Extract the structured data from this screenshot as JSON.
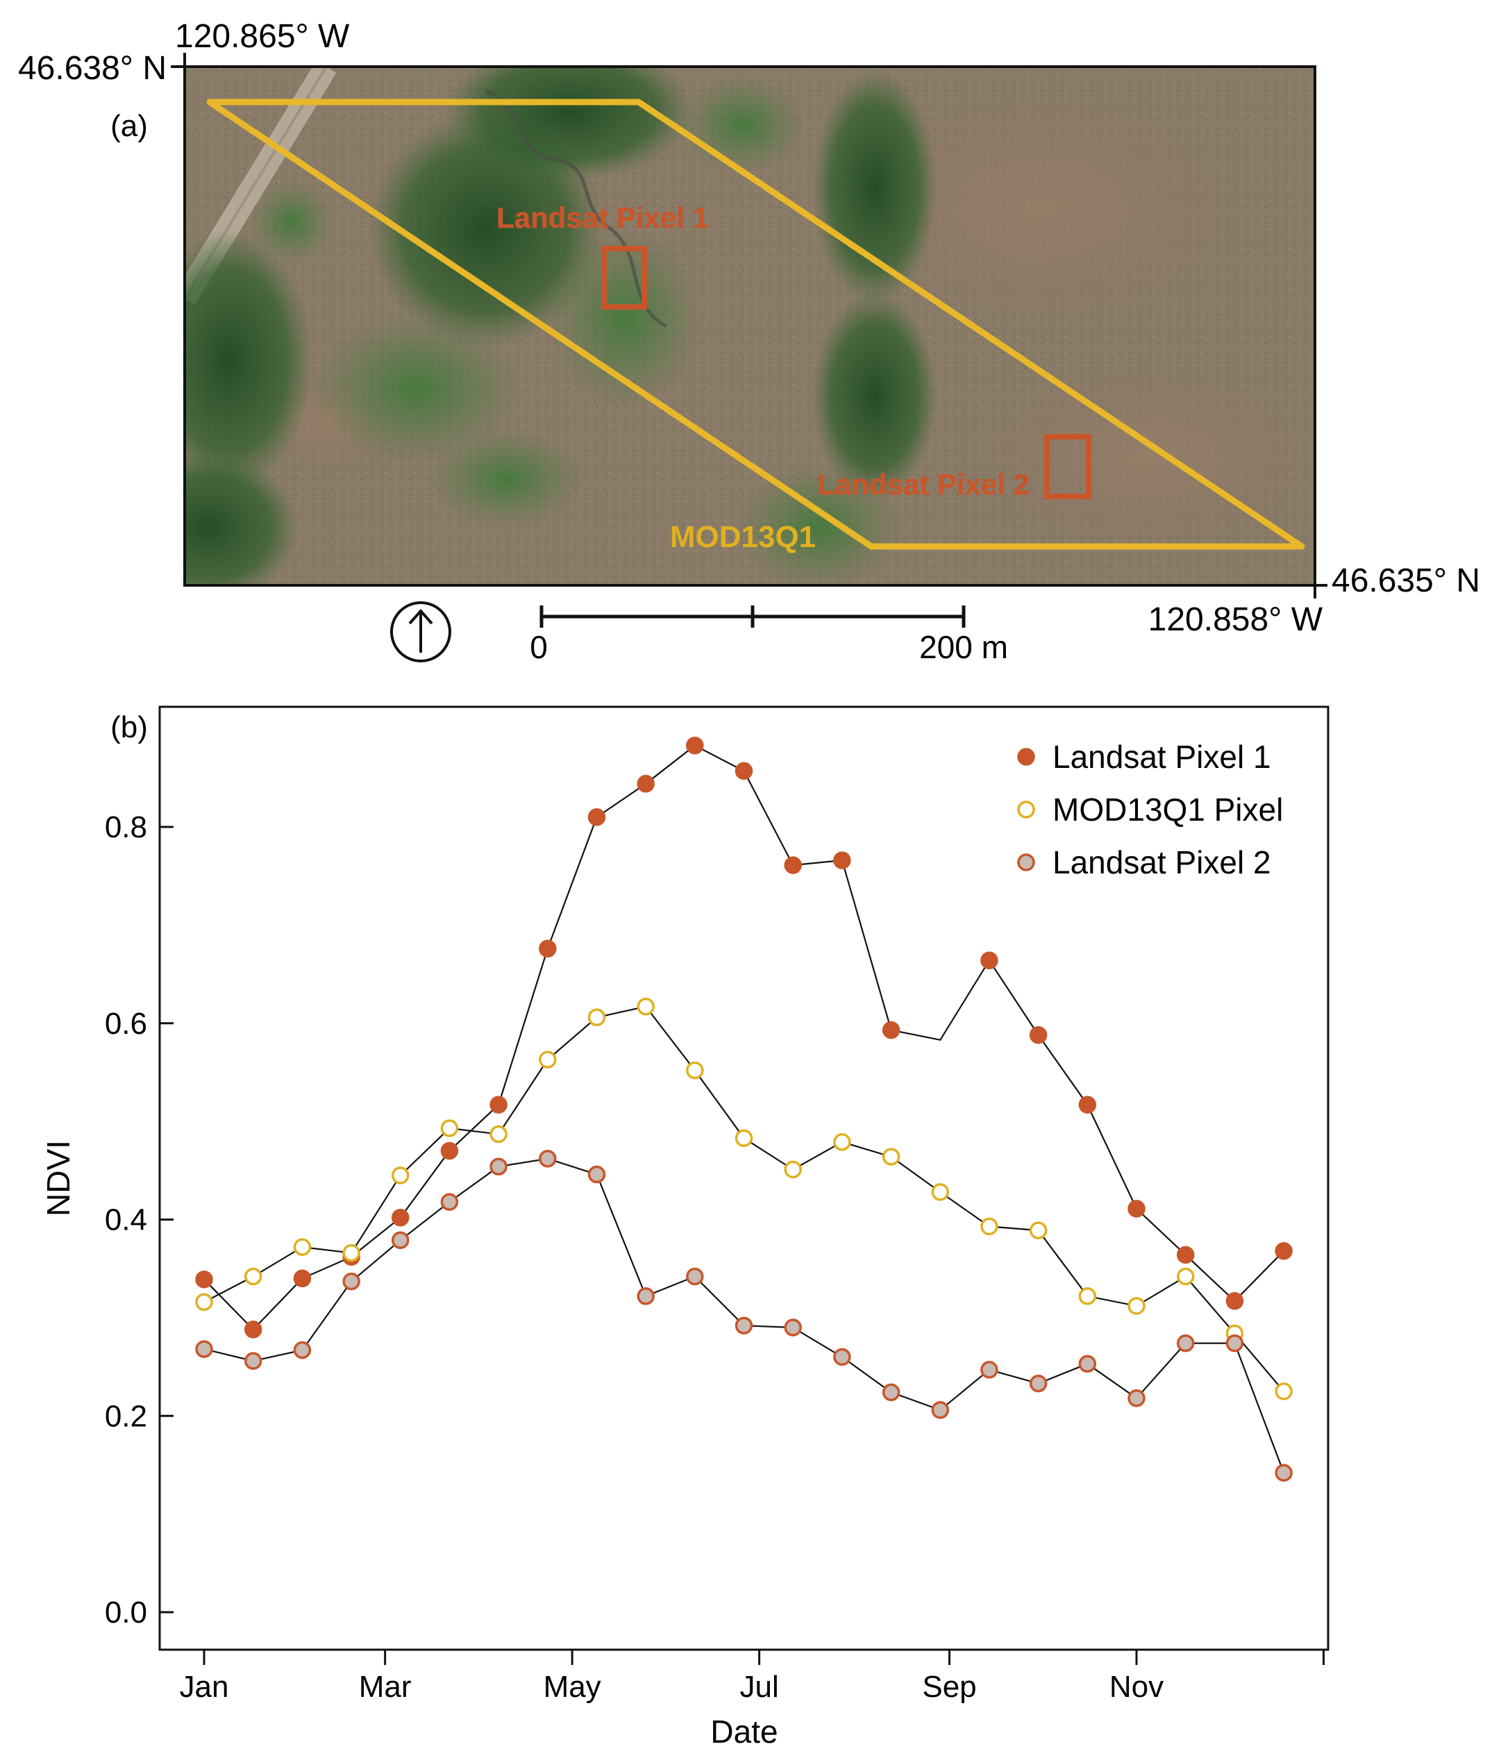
{
  "panel_a": {
    "label": "(a)",
    "corner_top_left": {
      "lat": "46.638° N",
      "lon": "120.865° W"
    },
    "corner_bottom_right": {
      "lat": "46.635° N",
      "lon": "120.858° W"
    },
    "labels": {
      "pixel1": "Landsat Pixel 1",
      "pixel2": "Landsat Pixel 2",
      "modis": "MOD13Q1"
    },
    "scale_bar": {
      "start": "0",
      "end": "200 m"
    },
    "north_arrow_icon": "north-arrow-icon",
    "colors": {
      "modis_outline": "#E8B82A",
      "landsat_outline": "#C8562A",
      "label_modis": "#E0B020",
      "label_landsat": "#C8562A"
    }
  },
  "panel_b": {
    "label": "(b)"
  },
  "chart_data": {
    "type": "line",
    "xlabel": "Date",
    "ylabel": "NDVI",
    "xlim": [
      1,
      366
    ],
    "ylim": [
      0.0,
      0.9
    ],
    "yticks": [
      "0.0",
      "0.2",
      "0.4",
      "0.6",
      "0.8"
    ],
    "xtick_labels": [
      "Jan",
      "Mar",
      "May",
      "Jul",
      "Sep",
      "Nov"
    ],
    "xtick_positions": [
      1,
      60,
      121,
      182,
      244,
      305
    ],
    "legend_position": "top-right",
    "grid": false,
    "x": [
      1,
      17,
      33,
      49,
      65,
      81,
      97,
      113,
      129,
      145,
      161,
      177,
      193,
      209,
      225,
      241,
      257,
      273,
      289,
      305,
      321,
      337,
      353
    ],
    "series": [
      {
        "name": "Landsat Pixel 1",
        "marker": "filled",
        "fill": "#C8562A",
        "stroke": "#C8562A",
        "values": [
          0.339,
          0.288,
          0.34,
          0.362,
          0.402,
          0.47,
          0.517,
          0.676,
          0.81,
          0.844,
          0.883,
          0.857,
          0.761,
          0.766,
          0.593,
          0.583,
          0.664,
          0.588,
          0.517,
          0.411,
          0.364,
          0.317,
          0.368
        ],
        "marker_shown": [
          true,
          true,
          true,
          true,
          true,
          true,
          true,
          true,
          true,
          true,
          true,
          true,
          true,
          true,
          true,
          false,
          true,
          true,
          true,
          true,
          true,
          true,
          true
        ]
      },
      {
        "name": "MOD13Q1 Pixel",
        "marker": "open",
        "fill": "#ffffff",
        "stroke": "#E0B020",
        "values": [
          0.316,
          0.342,
          0.372,
          0.366,
          0.445,
          0.493,
          0.487,
          0.563,
          0.606,
          0.617,
          0.552,
          0.483,
          0.451,
          0.479,
          0.464,
          0.428,
          0.393,
          0.389,
          0.322,
          0.312,
          0.342,
          0.284,
          0.225
        ]
      },
      {
        "name": "Landsat Pixel 2",
        "marker": "filled",
        "fill": "#C9BAB4",
        "stroke": "#C8562A",
        "values": [
          0.268,
          0.256,
          0.267,
          0.337,
          0.379,
          0.418,
          0.454,
          0.462,
          0.446,
          0.322,
          0.342,
          0.292,
          0.29,
          0.26,
          0.224,
          0.206,
          0.247,
          0.233,
          0.253,
          0.218,
          0.274,
          0.274,
          0.142
        ]
      }
    ]
  }
}
